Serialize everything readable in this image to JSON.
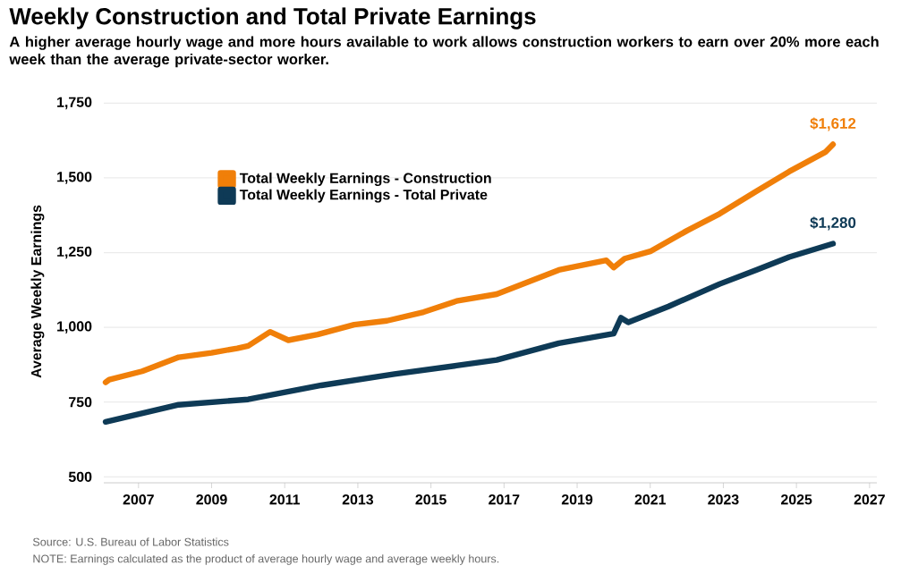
{
  "chart_data": {
    "type": "line",
    "title": "Weekly Construction and Total Private Earnings",
    "subtitle": "A higher average hourly wage and more hours available to work allows construction workers to earn over 20% more each week than the average private-sector worker.",
    "ylabel": "Average Weekly Earnings",
    "series": [
      {
        "name": "Total Weekly Earnings - Construction",
        "color": "#f07f09",
        "x": [
          2006.1,
          2006.2,
          2007.1,
          2008.1,
          2009.0,
          2009.7,
          2010.0,
          2010.6,
          2011.1,
          2011.9,
          2012.9,
          2013.8,
          2014.8,
          2015.7,
          2016.8,
          2018.5,
          2019.8,
          2020.0,
          2020.3,
          2021.0,
          2022.0,
          2022.9,
          2023.9,
          2024.8,
          2025.8,
          2026.0
        ],
        "values": [
          816,
          825,
          853,
          900,
          915,
          930,
          938,
          985,
          957,
          976,
          1009,
          1022,
          1051,
          1088,
          1111,
          1192,
          1224,
          1200,
          1230,
          1254,
          1323,
          1380,
          1455,
          1521,
          1587,
          1612
        ]
      },
      {
        "name": "Total Weekly Earnings - Total Private",
        "color": "#0e3a56",
        "x": [
          2006.1,
          2008.1,
          2010.0,
          2012.0,
          2014.0,
          2015.7,
          2016.8,
          2018.5,
          2020.0,
          2020.2,
          2020.4,
          2021.5,
          2022.9,
          2023.9,
          2024.8,
          2026.0
        ],
        "values": [
          684,
          741,
          759,
          806,
          844,
          872,
          891,
          947,
          979,
          1032,
          1017,
          1070,
          1145,
          1192,
          1235,
          1280
        ]
      }
    ],
    "xlim": [
      2006.05,
      2027.2
    ],
    "xticks": [
      2007,
      2009,
      2011,
      2013,
      2015,
      2017,
      2019,
      2021,
      2023,
      2025,
      2027
    ],
    "ylim": [
      480,
      1760
    ],
    "yticks": [
      500,
      750,
      {
        "value": 1000,
        "label": "1,000"
      },
      {
        "value": 1250,
        "label": "1,250"
      },
      {
        "value": 1500,
        "label": "1,500"
      },
      {
        "value": 1750,
        "label": "1,750"
      }
    ],
    "grid": "y",
    "legend": "top left",
    "annotations": [
      {
        "text": "$1,612",
        "x": 2026.0,
        "y": 1612
      },
      {
        "text": "$1,280",
        "x": 2026.0,
        "y": 1280
      },
      "Source: U.S. Bureau of Labor Statistics",
      "NOTE: Earnings calculated as the product of average hourly wage and average weekly hours."
    ]
  }
}
